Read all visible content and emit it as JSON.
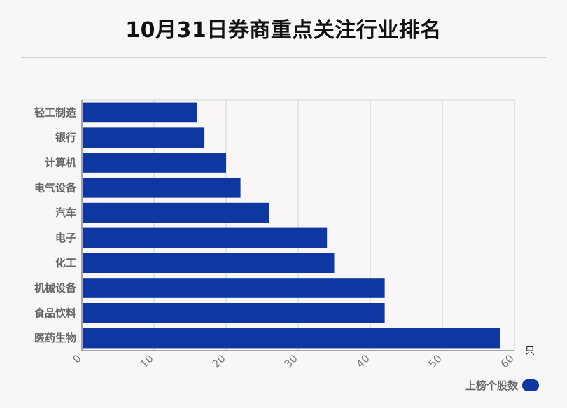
{
  "chart_data": {
    "type": "bar",
    "orientation": "horizontal",
    "title": "10月31日券商重点关注行业排名",
    "categories": [
      "轻工制造",
      "银行",
      "计算机",
      "电气设备",
      "汽车",
      "电子",
      "化工",
      "机械设备",
      "食品饮料",
      "医药生物"
    ],
    "series": [
      {
        "name": "上榜个股数",
        "values": [
          16,
          17,
          20,
          22,
          26,
          34,
          35,
          42,
          42,
          58
        ]
      }
    ],
    "xlim": [
      0,
      60
    ],
    "xticks": [
      "0",
      "10",
      "20",
      "30",
      "40",
      "50",
      "60"
    ],
    "xunit": "只",
    "grid": true,
    "legend_position": "bottom-right",
    "bar_color": "#0e37a1"
  }
}
